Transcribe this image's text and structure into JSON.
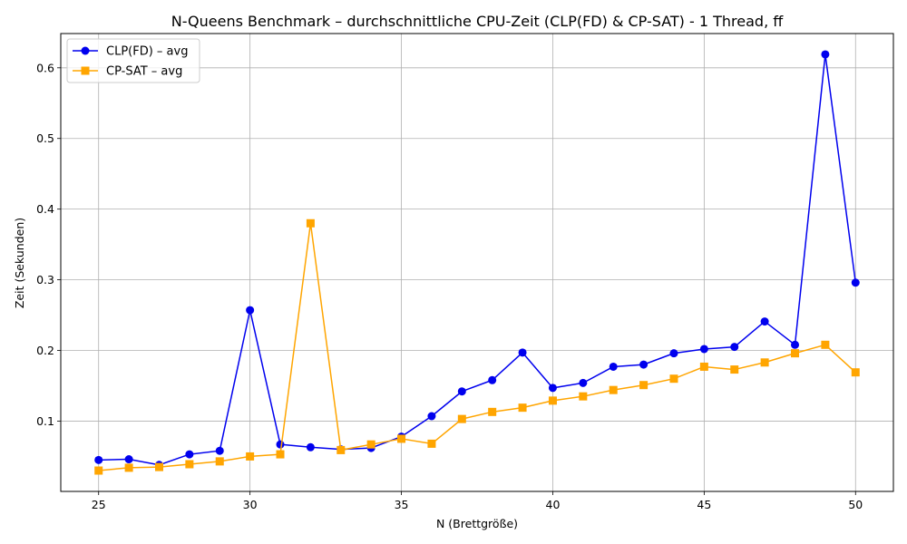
{
  "chart_data": {
    "type": "line",
    "title": "N-Queens Benchmark – durchschnittliche CPU-Zeit (CLP(FD) & CP-SAT) - 1 Thread, ff",
    "xlabel": "N (Brettgröße)",
    "ylabel": "Zeit (Sekunden)",
    "xlim": [
      23.75,
      51.25
    ],
    "ylim": [
      0.0005,
      0.6485
    ],
    "x_ticks": [
      25,
      30,
      35,
      40,
      45,
      50
    ],
    "y_ticks": [
      0.1,
      0.2,
      0.3,
      0.4,
      0.5,
      0.6
    ],
    "y_tick_labels": [
      "0.1",
      "0.2",
      "0.3",
      "0.4",
      "0.5",
      "0.6"
    ],
    "grid": true,
    "legend_position": "upper-left",
    "x": [
      25,
      26,
      27,
      28,
      29,
      30,
      31,
      32,
      33,
      34,
      35,
      36,
      37,
      38,
      39,
      40,
      41,
      42,
      43,
      44,
      45,
      46,
      47,
      48,
      49,
      50
    ],
    "series": [
      {
        "name": "CLP(FD) – avg",
        "color": "#0000ee",
        "marker": "circle",
        "values": [
          0.045,
          0.046,
          0.038,
          0.053,
          0.058,
          0.257,
          0.067,
          0.063,
          0.06,
          0.062,
          0.078,
          0.107,
          0.142,
          0.158,
          0.197,
          0.147,
          0.154,
          0.177,
          0.18,
          0.196,
          0.202,
          0.205,
          0.241,
          0.208,
          0.619,
          0.296
        ]
      },
      {
        "name": "CP-SAT – avg",
        "color": "#ffa500",
        "marker": "square",
        "values": [
          0.03,
          0.034,
          0.035,
          0.039,
          0.043,
          0.05,
          0.053,
          0.38,
          0.059,
          0.067,
          0.075,
          0.068,
          0.103,
          0.113,
          0.119,
          0.129,
          0.135,
          0.144,
          0.151,
          0.16,
          0.177,
          0.173,
          0.183,
          0.196,
          0.208,
          0.169
        ]
      }
    ]
  }
}
